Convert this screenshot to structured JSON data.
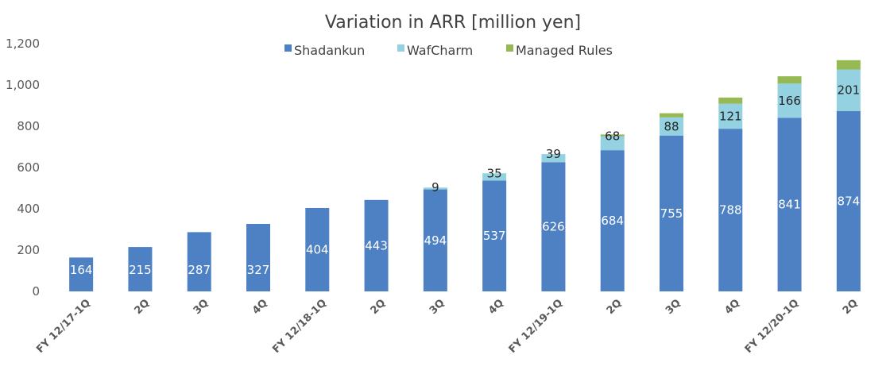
{
  "chart_data": {
    "type": "bar",
    "stacked": true,
    "title": "Variation in ARR [million yen]",
    "xlabel": "",
    "ylabel": "",
    "ylim": [
      0,
      1200
    ],
    "yticks": [
      0,
      200,
      400,
      600,
      800,
      1000,
      1200
    ],
    "ytick_labels": [
      "0",
      "200",
      "400",
      "600",
      "800",
      "1,000",
      "1,200"
    ],
    "grid": false,
    "legend_position": "top-center",
    "categories": [
      "FY 12/17-1Q",
      "2Q",
      "3Q",
      "4Q",
      "FY 12/18-1Q",
      "2Q",
      "3Q",
      "4Q",
      "FY 12/19-1Q",
      "2Q",
      "3Q",
      "4Q",
      "FY 12/20-1Q",
      "2Q"
    ],
    "series": [
      {
        "name": "Shadankun",
        "color": "#4e81c4",
        "values": [
          164,
          215,
          287,
          327,
          404,
          443,
          494,
          537,
          626,
          684,
          755,
          788,
          841,
          874
        ],
        "labels": [
          "164",
          "215",
          "287",
          "327",
          "404",
          "443",
          "494",
          "537",
          "626",
          "684",
          "755",
          "788",
          "841",
          "874"
        ]
      },
      {
        "name": "WafCharm",
        "color": "#94d1e1",
        "values": [
          0,
          0,
          0,
          0,
          0,
          0,
          9,
          35,
          39,
          68,
          88,
          121,
          166,
          201
        ],
        "labels": [
          "",
          "",
          "",
          "",
          "",
          "",
          "9",
          "35",
          "39",
          "68",
          "88",
          "121",
          "166",
          "201"
        ]
      },
      {
        "name": "Managed Rules",
        "color": "#97b954",
        "values": [
          0,
          0,
          0,
          0,
          0,
          0,
          0,
          0,
          0,
          8,
          20,
          30,
          35,
          45
        ],
        "labels": [
          "",
          "",
          "",
          "",
          "",
          "",
          "",
          "",
          "",
          "",
          "",
          "",
          "",
          ""
        ]
      }
    ]
  }
}
